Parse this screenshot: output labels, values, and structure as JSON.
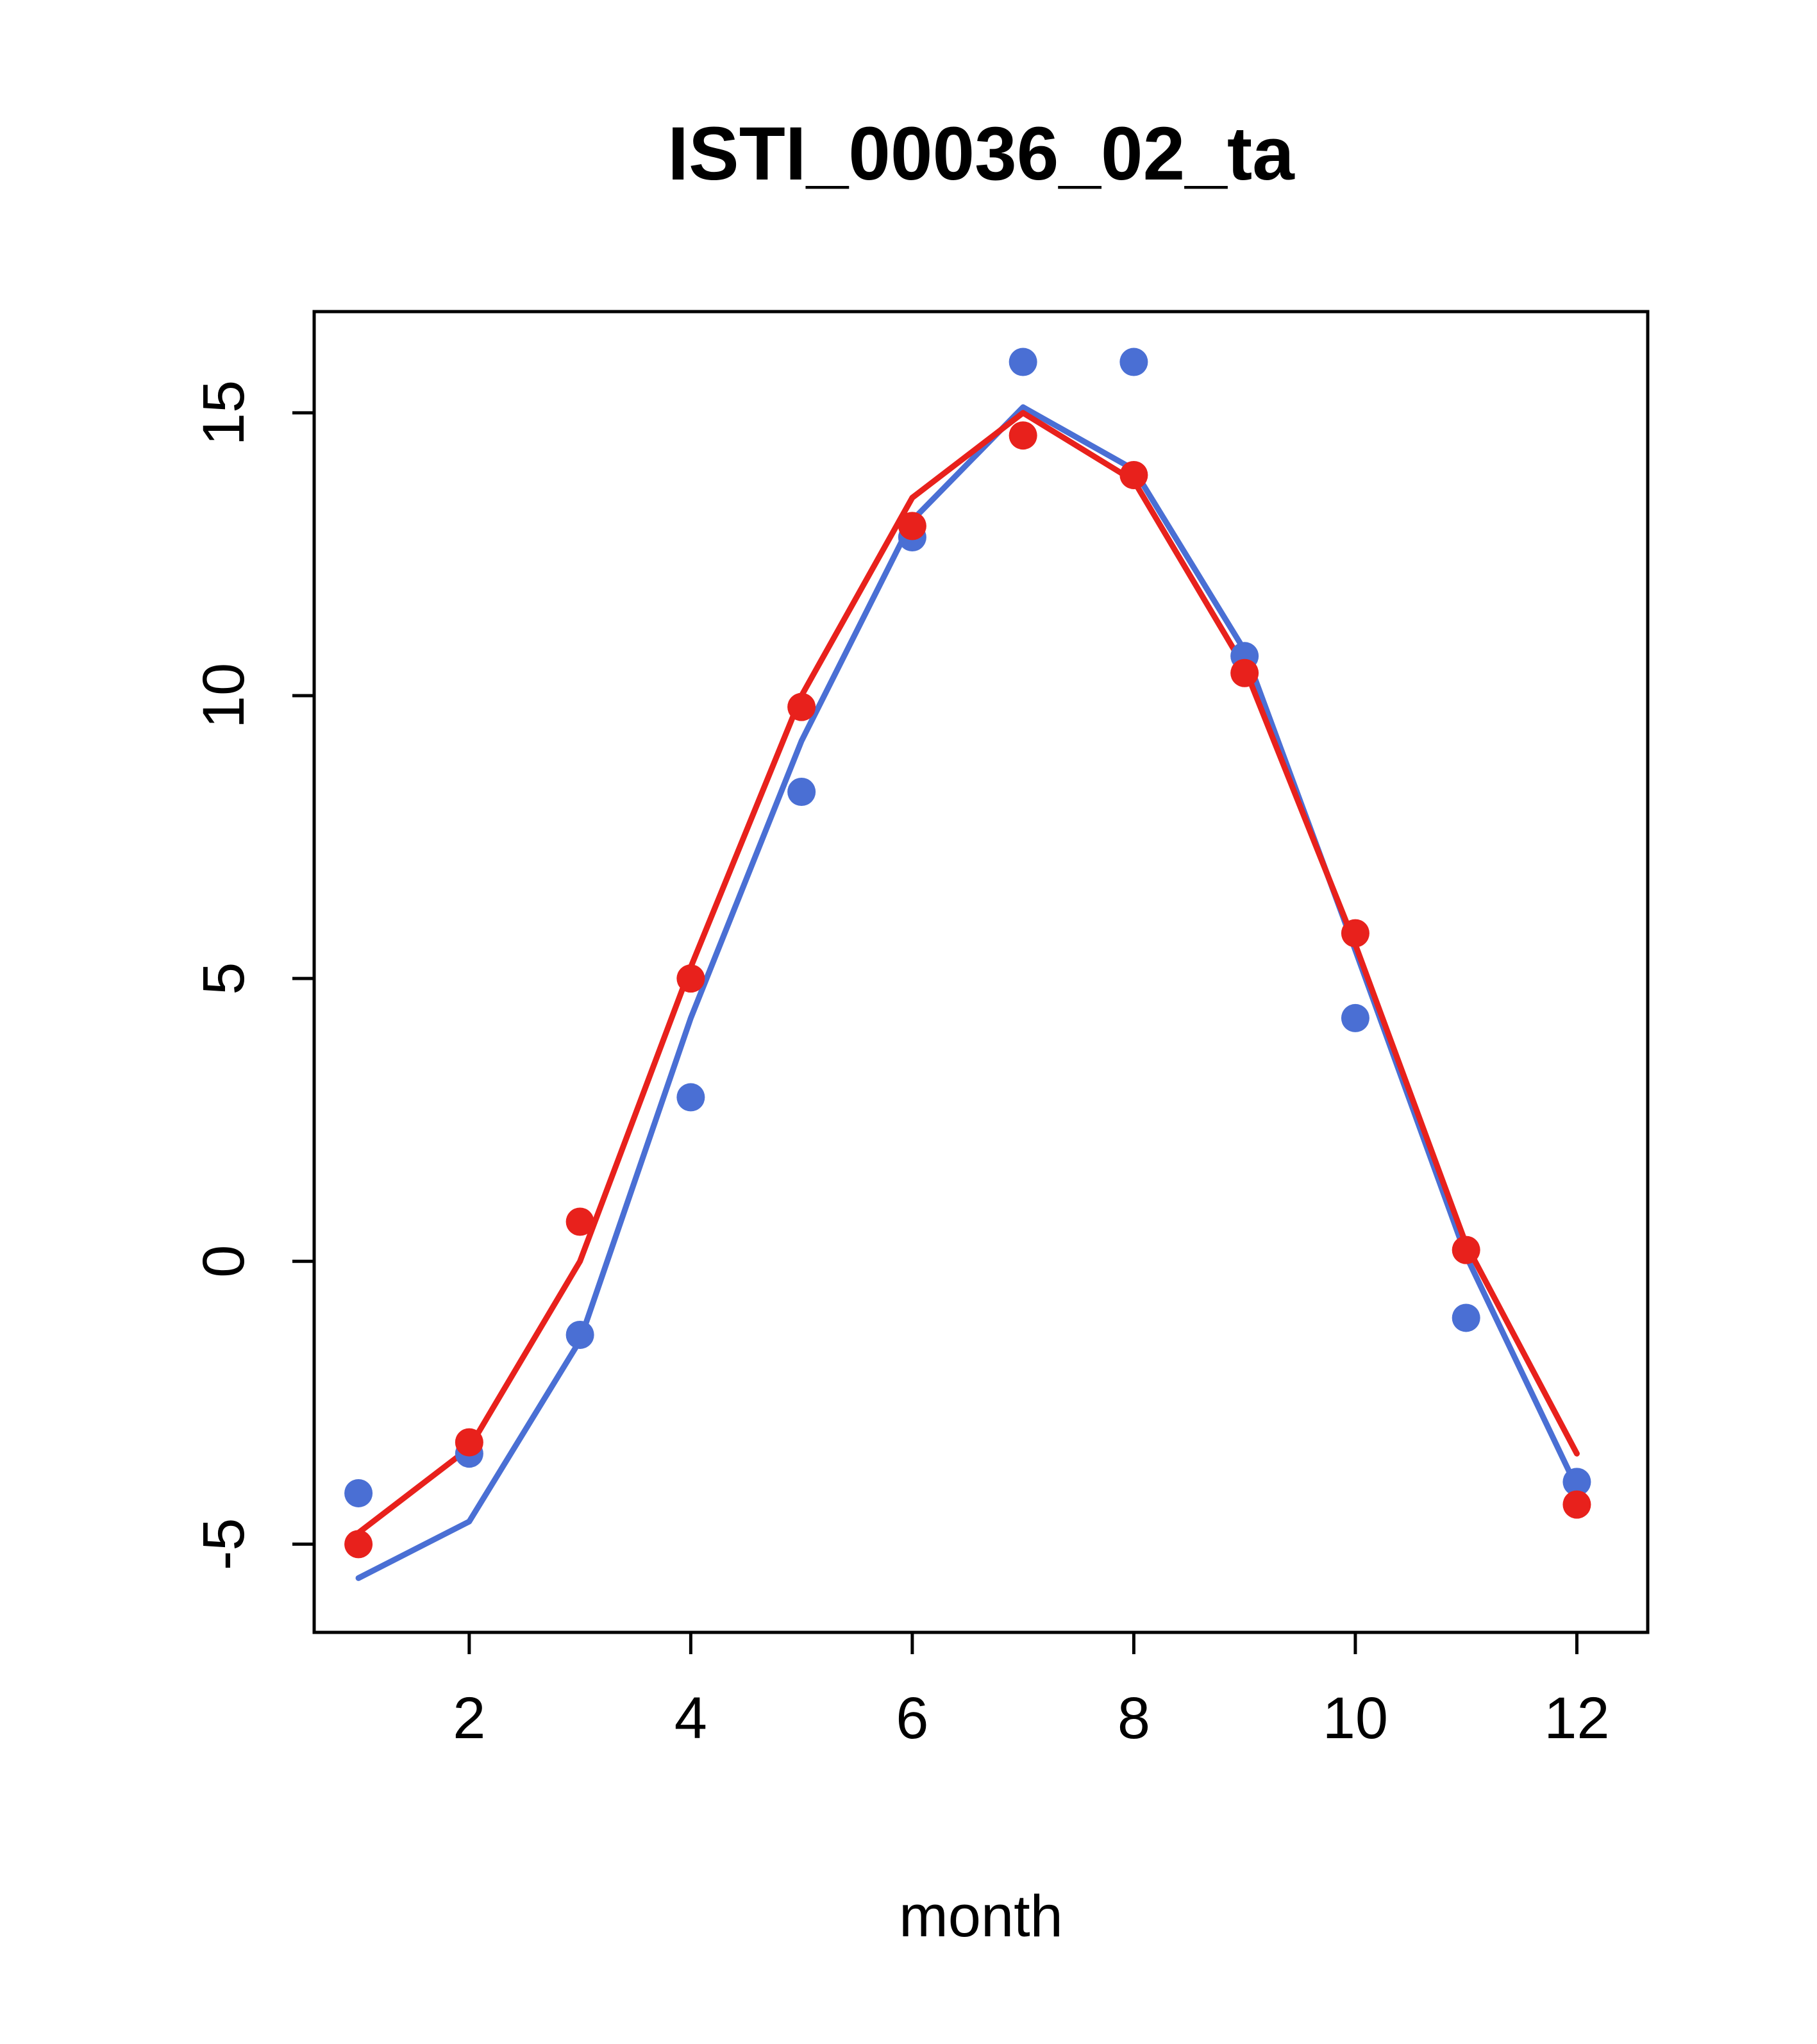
{
  "chart_data": {
    "type": "line",
    "title": "ISTI_00036_02_ta",
    "xlabel": "month",
    "ylabel": "",
    "x": [
      1,
      2,
      3,
      4,
      5,
      6,
      7,
      8,
      9,
      10,
      11,
      12
    ],
    "xlim": [
      0.6,
      12.64
    ],
    "ylim": [
      -6.56,
      16.79
    ],
    "xticks": [
      2,
      4,
      6,
      8,
      10,
      12
    ],
    "yticks": [
      -5,
      0,
      5,
      10,
      15
    ],
    "grid": false,
    "legend": "none",
    "colors": {
      "red": "#e8211c",
      "blue": "#4a6fd4"
    },
    "series": [
      {
        "name": "blue-line",
        "type": "line",
        "color": "#4a6fd4",
        "values": [
          -5.6,
          -4.6,
          -1.4,
          4.3,
          9.2,
          13.1,
          15.1,
          14.0,
          10.8,
          5.5,
          0.1,
          -4.0
        ]
      },
      {
        "name": "red-line",
        "type": "line",
        "color": "#e8211c",
        "values": [
          -4.8,
          -3.3,
          0.0,
          5.2,
          10.0,
          13.5,
          15.0,
          13.8,
          10.5,
          5.6,
          0.3,
          -3.4
        ]
      },
      {
        "name": "blue-points",
        "type": "points",
        "color": "#4a6fd4",
        "values": [
          -4.1,
          -3.4,
          -1.3,
          2.9,
          8.3,
          12.8,
          15.9,
          15.9,
          10.7,
          4.3,
          -1.0,
          -3.9
        ]
      },
      {
        "name": "red-points",
        "type": "points",
        "color": "#e8211c",
        "values": [
          -5.0,
          -3.2,
          0.7,
          5.0,
          9.8,
          13.0,
          14.6,
          13.9,
          10.4,
          5.8,
          0.2,
          -4.3
        ]
      }
    ]
  }
}
